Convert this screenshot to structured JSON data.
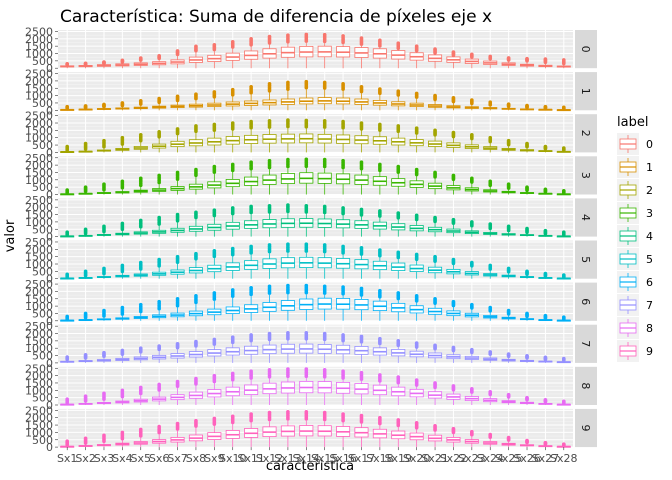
{
  "chart_data": {
    "type": "boxplot",
    "title": "Característica: Suma de diferencia de píxeles eje x",
    "xlabel": "caracteristica",
    "ylabel": "valor",
    "categories": [
      "Sx1",
      "Sx2",
      "Sx3",
      "Sx4",
      "Sx5",
      "Sx6",
      "Sx7",
      "Sx8",
      "Sx9",
      "Sx10",
      "Sx11",
      "Sx12",
      "Sx13",
      "Sx14",
      "Sx15",
      "Sx16",
      "Sx17",
      "Sx18",
      "Sx19",
      "Sx20",
      "Sx21",
      "Sx22",
      "Sx23",
      "Sx24",
      "Sx25",
      "Sx26",
      "Sx27",
      "Sx28"
    ],
    "y_ticks": [
      0,
      500,
      1000,
      1500,
      2000,
      2500
    ],
    "ylim": [
      0,
      2600
    ],
    "legend": {
      "title": "label",
      "labels": [
        "0",
        "1",
        "2",
        "3",
        "4",
        "5",
        "6",
        "7",
        "8",
        "9"
      ]
    },
    "colors": [
      "#F8766D",
      "#D89000",
      "#A3A500",
      "#39B600",
      "#00BF7D",
      "#00BFC4",
      "#00B0F6",
      "#9590FF",
      "#E76BF3",
      "#FF62BC"
    ],
    "panels": [
      {
        "label": "0",
        "medians": [
          120,
          140,
          180,
          220,
          270,
          330,
          420,
          560,
          650,
          760,
          870,
          980,
          1060,
          1100,
          1110,
          1090,
          1040,
          980,
          890,
          780,
          670,
          570,
          460,
          360,
          270,
          200,
          150,
          110
        ],
        "max": [
          300,
          330,
          420,
          540,
          690,
          840,
          1180,
          1490,
          1590,
          1800,
          2000,
          2150,
          2250,
          2300,
          2280,
          2200,
          2050,
          1900,
          1700,
          1500,
          1300,
          1100,
          950,
          800,
          700,
          650,
          620,
          560
        ]
      },
      {
        "label": "1",
        "medians": [
          40,
          60,
          90,
          120,
          160,
          210,
          260,
          310,
          360,
          420,
          470,
          520,
          570,
          620,
          640,
          620,
          570,
          500,
          430,
          360,
          290,
          230,
          180,
          140,
          100,
          70,
          50,
          30
        ],
        "max": [
          250,
          300,
          400,
          500,
          650,
          800,
          950,
          1100,
          1250,
          1400,
          1600,
          1800,
          1900,
          1950,
          1900,
          1800,
          1600,
          1450,
          1300,
          1150,
          1000,
          850,
          700,
          550,
          420,
          320,
          250,
          200
        ]
      },
      {
        "label": "2",
        "medians": [
          40,
          60,
          120,
          200,
          300,
          420,
          560,
          640,
          720,
          800,
          860,
          900,
          920,
          930,
          910,
          880,
          840,
          790,
          720,
          650,
          570,
          480,
          380,
          290,
          200,
          140,
          90,
          50
        ],
        "max": [
          400,
          600,
          800,
          1000,
          1200,
          1400,
          1600,
          1800,
          1900,
          2000,
          2100,
          2150,
          2200,
          2180,
          2150,
          2100,
          2000,
          1900,
          1800,
          1650,
          1500,
          1350,
          1200,
          1000,
          800,
          600,
          400,
          300
        ]
      },
      {
        "label": "3",
        "medians": [
          30,
          60,
          100,
          150,
          220,
          300,
          400,
          520,
          640,
          760,
          880,
          980,
          1060,
          1100,
          1080,
          1040,
          980,
          900,
          800,
          690,
          570,
          450,
          340,
          240,
          160,
          100,
          60,
          30
        ],
        "max": [
          300,
          500,
          700,
          900,
          1100,
          1300,
          1500,
          1700,
          1900,
          2050,
          2200,
          2300,
          2380,
          2400,
          2380,
          2300,
          2200,
          2050,
          1900,
          1700,
          1500,
          1300,
          1100,
          900,
          700,
          500,
          350,
          250
        ]
      },
      {
        "label": "4",
        "medians": [
          30,
          60,
          110,
          170,
          240,
          320,
          420,
          520,
          620,
          720,
          800,
          860,
          900,
          910,
          890,
          850,
          800,
          730,
          650,
          560,
          470,
          380,
          290,
          210,
          150,
          100,
          60,
          30
        ],
        "max": [
          300,
          500,
          700,
          900,
          1100,
          1300,
          1500,
          1650,
          1800,
          1950,
          2050,
          2100,
          2150,
          2100,
          2050,
          1950,
          1850,
          1750,
          1600,
          1450,
          1300,
          1150,
          1000,
          850,
          700,
          550,
          400,
          300
        ]
      },
      {
        "label": "5",
        "medians": [
          30,
          60,
          110,
          170,
          240,
          330,
          440,
          560,
          680,
          800,
          910,
          1000,
          1060,
          1080,
          1060,
          1020,
          960,
          880,
          790,
          690,
          580,
          470,
          360,
          260,
          180,
          110,
          60,
          30
        ],
        "max": [
          300,
          500,
          700,
          900,
          1100,
          1300,
          1500,
          1700,
          1900,
          2050,
          2200,
          2300,
          2350,
          2350,
          2300,
          2200,
          2100,
          1950,
          1800,
          1650,
          1500,
          1300,
          1100,
          900,
          700,
          500,
          350,
          250
        ]
      },
      {
        "label": "6",
        "medians": [
          30,
          60,
          100,
          150,
          220,
          300,
          390,
          490,
          590,
          700,
          810,
          920,
          1020,
          1100,
          1140,
          1130,
          1080,
          990,
          880,
          760,
          630,
          500,
          380,
          270,
          180,
          110,
          60,
          30
        ],
        "max": [
          300,
          500,
          700,
          900,
          1100,
          1300,
          1500,
          1700,
          1900,
          2100,
          2250,
          2350,
          2400,
          2400,
          2350,
          2300,
          2200,
          2050,
          1900,
          1700,
          1500,
          1300,
          1100,
          900,
          700,
          500,
          350,
          250
        ]
      },
      {
        "label": "7",
        "medians": [
          80,
          120,
          170,
          230,
          300,
          380,
          470,
          570,
          670,
          760,
          840,
          900,
          940,
          950,
          930,
          890,
          830,
          760,
          680,
          590,
          500,
          410,
          330,
          250,
          180,
          130,
          90,
          60
        ],
        "max": [
          400,
          550,
          700,
          850,
          1000,
          1150,
          1300,
          1450,
          1600,
          1750,
          1900,
          2000,
          2050,
          2050,
          2000,
          1900,
          1800,
          1650,
          1500,
          1350,
          1200,
          1050,
          900,
          750,
          600,
          480,
          380,
          300
        ]
      },
      {
        "label": "8",
        "medians": [
          40,
          80,
          130,
          200,
          290,
          400,
          520,
          650,
          780,
          900,
          1010,
          1100,
          1160,
          1190,
          1180,
          1140,
          1080,
          1000,
          900,
          790,
          670,
          550,
          430,
          320,
          220,
          140,
          80,
          40
        ],
        "max": [
          400,
          600,
          800,
          1000,
          1200,
          1400,
          1600,
          1800,
          2000,
          2150,
          2300,
          2400,
          2450,
          2450,
          2400,
          2300,
          2200,
          2050,
          1900,
          1700,
          1500,
          1300,
          1100,
          900,
          700,
          500,
          350,
          250
        ]
      },
      {
        "label": "9",
        "medians": [
          40,
          80,
          130,
          200,
          280,
          380,
          490,
          610,
          730,
          840,
          940,
          1020,
          1070,
          1090,
          1080,
          1040,
          980,
          900,
          810,
          710,
          600,
          490,
          380,
          280,
          190,
          120,
          70,
          40
        ],
        "max": [
          400,
          600,
          800,
          1000,
          1200,
          1400,
          1600,
          1800,
          1950,
          2100,
          2250,
          2350,
          2400,
          2400,
          2350,
          2250,
          2150,
          2000,
          1850,
          1650,
          1450,
          1250,
          1050,
          850,
          650,
          450,
          300,
          200
        ]
      }
    ]
  }
}
